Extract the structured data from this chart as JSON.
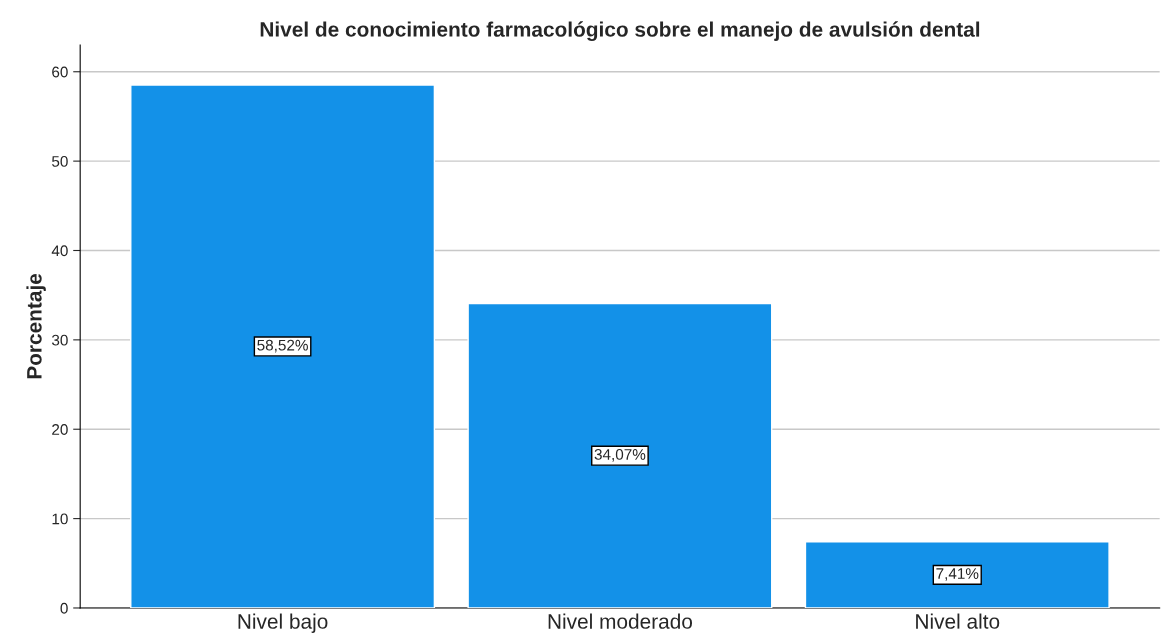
{
  "chart_data": {
    "type": "bar",
    "title": "Nivel de conocimiento farmacológico sobre el manejo de avulsión dental",
    "ylabel": "Porcentaje",
    "categories": [
      "Nivel bajo",
      "Nivel moderado",
      "Nivel alto"
    ],
    "values": [
      58.52,
      34.07,
      7.41
    ],
    "value_labels": [
      "58,52%",
      "34,07%",
      "7,41%"
    ],
    "color": "#1391e8",
    "ylim": [
      0,
      63
    ],
    "yticks": [
      0,
      10,
      20,
      30,
      40,
      50,
      60
    ],
    "grid": "y",
    "legend": false
  }
}
